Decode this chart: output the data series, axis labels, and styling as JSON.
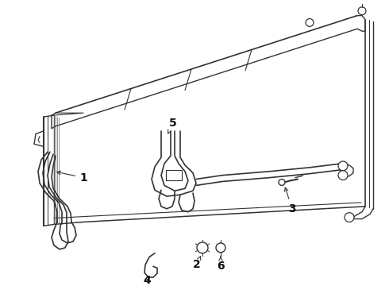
{
  "bg_color": "#ffffff",
  "line_color": "#333333",
  "lw": 1.0,
  "font_size": 9,
  "label_color": "#111111",
  "figsize": [
    4.9,
    3.6
  ],
  "dpi": 100
}
